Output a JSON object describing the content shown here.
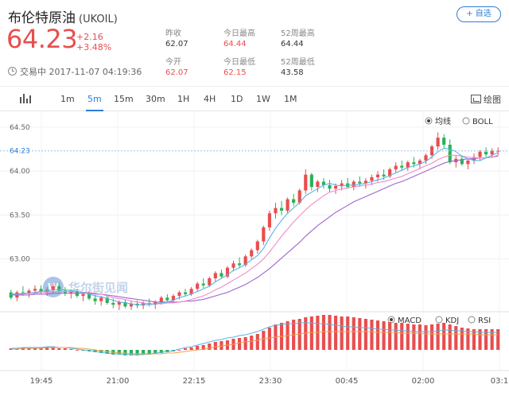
{
  "header": {
    "title": "布伦特原油",
    "code": "(UKOIL)",
    "follow_label": "+ 自选",
    "price": "64.23",
    "change": "+2.16",
    "change_pct": "+3.48%",
    "status": "交易中 2017-11-07 04:19:36"
  },
  "stats": [
    {
      "label": "昨收",
      "value": "62.07",
      "red": false
    },
    {
      "label": "今日最高",
      "value": "64.44",
      "red": true
    },
    {
      "label": "52周最高",
      "value": "64.44",
      "red": false
    },
    {
      "label": "今开",
      "value": "62.07",
      "red": true
    },
    {
      "label": "今日最低",
      "value": "62.15",
      "red": true
    },
    {
      "label": "52周最低",
      "value": "43.58",
      "red": false
    }
  ],
  "toolbar": {
    "tabs": [
      "1m",
      "5m",
      "15m",
      "30m",
      "1H",
      "4H",
      "1D",
      "1W",
      "1M"
    ],
    "active_tab": "5m",
    "draw_label": "绘图"
  },
  "chart_data": {
    "type": "candlestick",
    "y_ticks": [
      "64.50",
      "64.00",
      "63.50",
      "63.00"
    ],
    "current_price_label": "64.23",
    "ylim": [
      62.4,
      64.68
    ],
    "x_ticks": [
      "19:45",
      "21:00",
      "22:15",
      "23:30",
      "00:45",
      "02:00",
      "03:1"
    ],
    "main_toggles": [
      {
        "label": "均线",
        "selected": true
      },
      {
        "label": "BOLL",
        "selected": false
      }
    ],
    "indicator_toggles": [
      {
        "label": "MACD",
        "selected": true
      },
      {
        "label": "KDJ",
        "selected": false
      },
      {
        "label": "RSI",
        "selected": false
      }
    ],
    "watermark": "华尔街见闻",
    "candles": [
      [
        62.62,
        62.65,
        62.54,
        62.56
      ],
      [
        62.56,
        62.64,
        62.52,
        62.62
      ],
      [
        62.62,
        62.69,
        62.58,
        62.61
      ],
      [
        62.61,
        62.66,
        62.56,
        62.64
      ],
      [
        62.64,
        62.7,
        62.6,
        62.66
      ],
      [
        62.66,
        62.7,
        62.6,
        62.63
      ],
      [
        62.63,
        62.68,
        62.58,
        62.65
      ],
      [
        62.65,
        62.72,
        62.61,
        62.69
      ],
      [
        62.69,
        62.73,
        62.62,
        62.64
      ],
      [
        62.64,
        62.68,
        62.58,
        62.61
      ],
      [
        62.61,
        62.65,
        62.55,
        62.63
      ],
      [
        62.63,
        62.66,
        62.56,
        62.58
      ],
      [
        62.58,
        62.62,
        62.52,
        62.6
      ],
      [
        62.6,
        62.64,
        62.53,
        62.55
      ],
      [
        62.55,
        62.59,
        62.48,
        62.52
      ],
      [
        62.52,
        62.58,
        62.47,
        62.56
      ],
      [
        62.56,
        62.59,
        62.48,
        62.5
      ],
      [
        62.5,
        62.55,
        62.44,
        62.48
      ],
      [
        62.48,
        62.53,
        62.42,
        62.51
      ],
      [
        62.51,
        62.54,
        62.44,
        62.46
      ],
      [
        62.46,
        62.52,
        62.42,
        62.49
      ],
      [
        62.49,
        62.53,
        62.44,
        62.47
      ],
      [
        62.47,
        62.52,
        62.43,
        62.5
      ],
      [
        62.5,
        62.55,
        62.46,
        62.48
      ],
      [
        62.48,
        62.53,
        62.43,
        62.51
      ],
      [
        62.51,
        62.58,
        62.48,
        62.56
      ],
      [
        62.56,
        62.6,
        62.5,
        62.53
      ],
      [
        62.53,
        62.6,
        62.5,
        62.58
      ],
      [
        62.58,
        62.64,
        62.54,
        62.62
      ],
      [
        62.62,
        62.66,
        62.57,
        62.6
      ],
      [
        62.6,
        62.68,
        62.58,
        62.66
      ],
      [
        62.66,
        62.74,
        62.63,
        62.72
      ],
      [
        62.72,
        62.78,
        62.67,
        62.7
      ],
      [
        62.7,
        62.8,
        62.68,
        62.78
      ],
      [
        62.78,
        62.86,
        62.74,
        62.84
      ],
      [
        62.84,
        62.88,
        62.78,
        62.8
      ],
      [
        62.8,
        62.92,
        62.78,
        62.9
      ],
      [
        62.9,
        62.98,
        62.86,
        62.95
      ],
      [
        62.95,
        63.02,
        62.9,
        62.93
      ],
      [
        62.93,
        63.05,
        62.91,
        63.03
      ],
      [
        63.03,
        63.12,
        63.0,
        63.1
      ],
      [
        63.1,
        63.22,
        63.06,
        63.2
      ],
      [
        63.2,
        63.38,
        63.16,
        63.36
      ],
      [
        63.36,
        63.55,
        63.32,
        63.52
      ],
      [
        63.52,
        63.64,
        63.46,
        63.58
      ],
      [
        63.58,
        63.66,
        63.5,
        63.55
      ],
      [
        63.55,
        63.7,
        63.52,
        63.68
      ],
      [
        63.68,
        63.74,
        63.6,
        63.64
      ],
      [
        63.64,
        63.8,
        63.62,
        63.78
      ],
      [
        63.78,
        64.02,
        63.74,
        63.96
      ],
      [
        63.96,
        63.98,
        63.78,
        63.82
      ],
      [
        63.82,
        63.9,
        63.76,
        63.88
      ],
      [
        63.88,
        63.92,
        63.8,
        63.84
      ],
      [
        63.84,
        63.9,
        63.76,
        63.8
      ],
      [
        63.8,
        63.86,
        63.74,
        63.83
      ],
      [
        63.83,
        63.9,
        63.78,
        63.86
      ],
      [
        63.86,
        63.92,
        63.8,
        63.82
      ],
      [
        63.82,
        63.9,
        63.78,
        63.88
      ],
      [
        63.88,
        63.94,
        63.82,
        63.86
      ],
      [
        63.86,
        63.92,
        63.8,
        63.89
      ],
      [
        63.89,
        63.96,
        63.84,
        63.93
      ],
      [
        63.93,
        64.0,
        63.88,
        63.96
      ],
      [
        63.96,
        64.02,
        63.9,
        63.94
      ],
      [
        63.94,
        64.04,
        63.92,
        64.02
      ],
      [
        64.02,
        64.1,
        63.98,
        64.06
      ],
      [
        64.06,
        64.12,
        64.0,
        64.04
      ],
      [
        64.04,
        64.12,
        64.0,
        64.1
      ],
      [
        64.1,
        64.16,
        64.04,
        64.08
      ],
      [
        64.08,
        64.14,
        64.02,
        64.12
      ],
      [
        64.12,
        64.2,
        64.08,
        64.18
      ],
      [
        64.18,
        64.3,
        64.14,
        64.28
      ],
      [
        64.28,
        64.44,
        64.24,
        64.38
      ],
      [
        64.38,
        64.42,
        64.26,
        64.3
      ],
      [
        64.3,
        64.36,
        64.08,
        64.1
      ],
      [
        64.1,
        64.18,
        64.04,
        64.14
      ],
      [
        64.14,
        64.18,
        64.06,
        64.08
      ],
      [
        64.08,
        64.14,
        64.02,
        64.12
      ],
      [
        64.12,
        64.2,
        64.08,
        64.16
      ],
      [
        64.16,
        64.24,
        64.12,
        64.22
      ],
      [
        64.22,
        64.27,
        64.16,
        64.19
      ],
      [
        64.19,
        64.26,
        64.15,
        64.23
      ],
      [
        64.23,
        64.27,
        64.18,
        64.23
      ]
    ],
    "ma5": [
      62.6,
      62.6,
      62.61,
      62.61,
      62.62,
      62.63,
      62.64,
      62.65,
      62.65,
      62.65,
      62.64,
      62.63,
      62.62,
      62.6,
      62.58,
      62.57,
      62.55,
      62.53,
      62.51,
      62.5,
      62.49,
      62.48,
      62.48,
      62.48,
      62.49,
      62.5,
      62.51,
      62.53,
      62.56,
      62.58,
      62.6,
      62.63,
      62.66,
      62.69,
      62.74,
      62.78,
      62.82,
      62.87,
      62.9,
      62.94,
      62.99,
      63.04,
      63.12,
      63.24,
      63.35,
      63.44,
      63.52,
      63.58,
      63.64,
      63.72,
      63.76,
      63.8,
      63.84,
      63.86,
      63.84,
      63.83,
      63.84,
      63.84,
      63.85,
      63.86,
      63.88,
      63.9,
      63.92,
      63.95,
      63.98,
      64.01,
      64.04,
      64.06,
      64.08,
      64.11,
      64.16,
      64.22,
      64.26,
      64.25,
      64.22,
      64.17,
      64.14,
      64.12,
      64.12,
      64.15,
      64.18,
      64.21
    ],
    "ma10": [
      62.6,
      62.6,
      62.6,
      62.61,
      62.61,
      62.62,
      62.62,
      62.63,
      62.63,
      62.63,
      62.63,
      62.63,
      62.62,
      62.62,
      62.61,
      62.6,
      62.58,
      62.56,
      62.55,
      62.54,
      62.52,
      62.51,
      62.5,
      62.49,
      62.49,
      62.49,
      62.5,
      62.5,
      62.51,
      62.52,
      62.54,
      62.56,
      62.58,
      62.61,
      62.65,
      62.68,
      62.72,
      62.76,
      62.8,
      62.84,
      62.89,
      62.94,
      63.0,
      63.08,
      63.17,
      63.26,
      63.34,
      63.42,
      63.49,
      63.56,
      63.62,
      63.67,
      63.72,
      63.76,
      63.78,
      63.8,
      63.81,
      63.82,
      63.83,
      63.84,
      63.85,
      63.87,
      63.88,
      63.9,
      63.92,
      63.94,
      63.97,
      64.0,
      64.03,
      64.06,
      64.09,
      64.13,
      64.16,
      64.18,
      64.18,
      64.17,
      64.16,
      64.15,
      64.15,
      64.15,
      64.16,
      64.18
    ],
    "ma20": [
      62.59,
      62.59,
      62.59,
      62.59,
      62.6,
      62.6,
      62.6,
      62.61,
      62.61,
      62.61,
      62.61,
      62.61,
      62.61,
      62.61,
      62.6,
      62.6,
      62.59,
      62.58,
      62.57,
      62.56,
      62.55,
      62.54,
      62.53,
      62.52,
      62.51,
      62.51,
      62.51,
      62.51,
      62.51,
      62.52,
      62.52,
      62.53,
      62.54,
      62.56,
      62.58,
      62.6,
      62.62,
      62.65,
      62.68,
      62.71,
      62.75,
      62.79,
      62.84,
      62.89,
      62.95,
      63.01,
      63.07,
      63.13,
      63.19,
      63.26,
      63.32,
      63.38,
      63.43,
      63.48,
      63.53,
      63.57,
      63.61,
      63.65,
      63.68,
      63.71,
      63.74,
      63.77,
      63.8,
      63.83,
      63.86,
      63.88,
      63.91,
      63.94,
      63.97,
      64.0,
      64.03,
      64.06,
      64.09,
      64.11,
      64.12,
      64.13,
      64.14,
      64.14,
      64.15,
      64.15,
      64.16,
      64.17
    ],
    "macd_hist": [
      0.002,
      0.002,
      0.003,
      0.002,
      0.003,
      0.003,
      0.004,
      0.003,
      0.002,
      0.002,
      0.001,
      0.0,
      -0.001,
      -0.002,
      -0.003,
      -0.004,
      -0.005,
      -0.006,
      -0.006,
      -0.007,
      -0.007,
      -0.007,
      -0.006,
      -0.006,
      -0.005,
      -0.004,
      -0.003,
      -0.002,
      0.0,
      0.002,
      0.003,
      0.005,
      0.006,
      0.008,
      0.01,
      0.011,
      0.012,
      0.014,
      0.015,
      0.016,
      0.018,
      0.02,
      0.024,
      0.028,
      0.032,
      0.034,
      0.036,
      0.038,
      0.039,
      0.041,
      0.042,
      0.043,
      0.044,
      0.044,
      0.043,
      0.042,
      0.042,
      0.041,
      0.04,
      0.039,
      0.038,
      0.037,
      0.036,
      0.035,
      0.034,
      0.034,
      0.033,
      0.032,
      0.032,
      0.031,
      0.032,
      0.033,
      0.034,
      0.032,
      0.03,
      0.028,
      0.027,
      0.026,
      0.026,
      0.026,
      0.026,
      0.026
    ],
    "dif": [
      0.002,
      0.002,
      0.003,
      0.003,
      0.003,
      0.003,
      0.004,
      0.004,
      0.003,
      0.003,
      0.002,
      0.001,
      0.0,
      -0.001,
      -0.002,
      -0.003,
      -0.004,
      -0.005,
      -0.005,
      -0.006,
      -0.006,
      -0.006,
      -0.006,
      -0.005,
      -0.004,
      -0.003,
      -0.002,
      -0.001,
      0.001,
      0.003,
      0.004,
      0.006,
      0.008,
      0.01,
      0.012,
      0.013,
      0.015,
      0.016,
      0.018,
      0.019,
      0.021,
      0.023,
      0.026,
      0.029,
      0.031,
      0.032,
      0.033,
      0.033,
      0.034,
      0.034,
      0.034,
      0.033,
      0.033,
      0.032,
      0.031,
      0.03,
      0.029,
      0.029,
      0.028,
      0.028,
      0.027,
      0.026,
      0.026,
      0.025,
      0.025,
      0.024,
      0.024,
      0.023,
      0.023,
      0.023,
      0.023,
      0.024,
      0.025,
      0.025,
      0.024,
      0.024,
      0.023,
      0.023,
      0.022,
      0.022,
      0.022,
      0.022
    ],
    "dea": [
      0.001,
      0.001,
      0.002,
      0.002,
      0.002,
      0.002,
      0.003,
      0.003,
      0.003,
      0.003,
      0.003,
      0.002,
      0.002,
      0.001,
      0.0,
      -0.001,
      -0.002,
      -0.003,
      -0.004,
      -0.004,
      -0.005,
      -0.005,
      -0.005,
      -0.005,
      -0.005,
      -0.005,
      -0.004,
      -0.004,
      -0.003,
      -0.002,
      -0.001,
      0.0,
      0.001,
      0.002,
      0.004,
      0.005,
      0.006,
      0.007,
      0.009,
      0.01,
      0.011,
      0.012,
      0.014,
      0.015,
      0.016,
      0.017,
      0.018,
      0.019,
      0.02,
      0.021,
      0.022,
      0.022,
      0.023,
      0.023,
      0.023,
      0.023,
      0.023,
      0.023,
      0.023,
      0.023,
      0.023,
      0.022,
      0.022,
      0.022,
      0.022,
      0.021,
      0.021,
      0.021,
      0.021,
      0.02,
      0.02,
      0.02,
      0.02,
      0.02,
      0.02,
      0.02,
      0.02,
      0.02,
      0.019,
      0.019,
      0.019,
      0.019
    ]
  }
}
